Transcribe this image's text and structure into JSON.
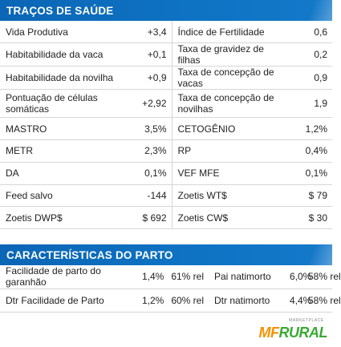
{
  "health": {
    "title": "TRAÇOS DE SAÚDE",
    "rows": [
      {
        "l_label": "Vida Produtiva",
        "l_value": "+3,4",
        "r_label": "Índice de Fertilidade",
        "r_value": "0,6"
      },
      {
        "l_label": "Habitabilidade da vaca",
        "l_value": "+0,1",
        "r_label": "Taxa de gravidez de filhas",
        "r_value": "0,2"
      },
      {
        "l_label": "Habitabilidade da novilha",
        "l_value": "+0,9",
        "r_label": "Taxa de concepção de vacas",
        "r_value": "0,9"
      },
      {
        "l_label": "Pontuação de células somáticas",
        "l_value": "+2,92",
        "r_label": "Taxa de concepção de novilhas",
        "r_value": "1,9"
      },
      {
        "l_label": "MASTRO",
        "l_value": "3,5%",
        "r_label": "CETOGÊNIO",
        "r_value": "1,2%"
      },
      {
        "l_label": "METR",
        "l_value": "2,3%",
        "r_label": "RP",
        "r_value": "0,4%"
      },
      {
        "l_label": "DA",
        "l_value": "0,1%",
        "r_label": "VEF MFE",
        "r_value": "0,1%"
      },
      {
        "l_label": "Feed salvo",
        "l_value": "-144",
        "r_label": "Zoetis WT$",
        "r_value": "$ 79"
      },
      {
        "l_label": "Zoetis DWP$",
        "l_value": "$ 692",
        "r_label": "Zoetis CW$",
        "r_value": "$ 30"
      }
    ]
  },
  "calving": {
    "title": "CARACTERÍSTICAS DO PARTO",
    "rows": [
      {
        "label": "Facilidade de parto do garanhão",
        "pct": "1,4%",
        "rel": "61% rel",
        "r_label": "Pai natimorto",
        "r_pct": "6,0%",
        "r_rel": "58% rel"
      },
      {
        "label": "Dtr Facilidade de Parto",
        "pct": "1,2%",
        "rel": "60% rel",
        "r_label": "Dtr natimorto",
        "r_pct": "4,4%",
        "r_rel": "58% rel"
      }
    ]
  },
  "logo": {
    "small": "MARKETPLACE",
    "mf": "MF",
    "rural": "RURAL"
  },
  "colors": {
    "header_blue": "#0f73c4",
    "logo_orange": "#f39200",
    "logo_green": "#3aa935"
  }
}
